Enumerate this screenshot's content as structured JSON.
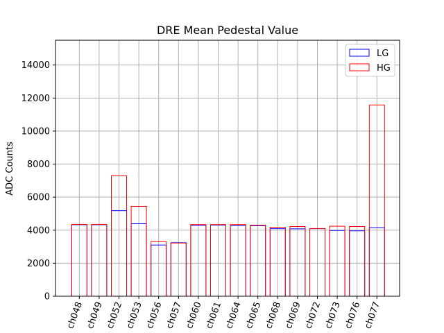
{
  "chart_data": {
    "type": "bar",
    "title": "DRE Mean Pedestal Value",
    "xlabel": "",
    "ylabel": "ADC Counts",
    "ylim": [
      0,
      15500
    ],
    "yticks": [
      0,
      2000,
      4000,
      6000,
      8000,
      10000,
      12000,
      14000
    ],
    "grid": true,
    "legend_position": "top-right",
    "categories": [
      "ch048",
      "ch049",
      "ch052",
      "ch053",
      "ch056",
      "ch057",
      "ch060",
      "ch061",
      "ch064",
      "ch065",
      "ch068",
      "ch069",
      "ch072",
      "ch073",
      "ch076",
      "ch077"
    ],
    "series": [
      {
        "name": "LG",
        "color": "#0000ff",
        "values": [
          4330,
          4330,
          5180,
          4390,
          3100,
          3240,
          4290,
          4310,
          4270,
          4270,
          4090,
          4080,
          4090,
          3980,
          3960,
          4150
        ]
      },
      {
        "name": "HG",
        "color": "#ff0000",
        "values": [
          4350,
          4350,
          7300,
          5440,
          3310,
          3220,
          4340,
          4340,
          4340,
          4300,
          4180,
          4220,
          4100,
          4240,
          4220,
          11580
        ]
      }
    ]
  }
}
